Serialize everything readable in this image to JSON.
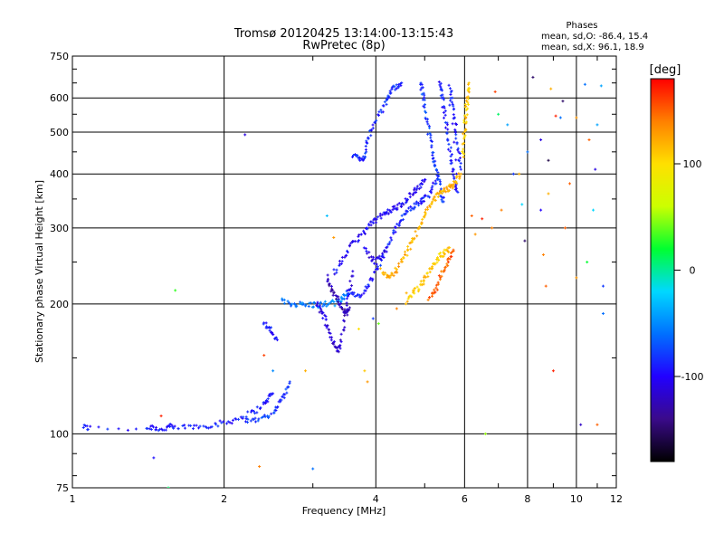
{
  "chart_data": {
    "type": "scatter",
    "title": "Tromsø 20120425 13:14:00-13:15:43",
    "subtitle": "RwPretec (8p)",
    "xlabel": "Frequency [MHz]",
    "ylabel": "Stationary phase Virtual Height [km]",
    "x_scale": "log",
    "y_scale": "log",
    "xlim": [
      1,
      12
    ],
    "ylim": [
      75,
      750
    ],
    "x_ticks": [
      1,
      2,
      4,
      6,
      8,
      10,
      12
    ],
    "y_ticks": [
      75,
      100,
      200,
      300,
      400,
      500,
      600,
      750
    ],
    "grid": true,
    "info_box": {
      "heading": "Phases",
      "line1": "mean, sd,O: -86.4, 15.4",
      "line2": "mean, sd,X:  96.1, 18.9"
    },
    "colorbar": {
      "label": "[deg]",
      "range": [
        -180,
        180
      ],
      "ticks": [
        100,
        0,
        -100
      ],
      "colors": [
        "#000000",
        "#3a0a8a",
        "#2200ff",
        "#0070ff",
        "#00d8ff",
        "#00ff30",
        "#ccff00",
        "#ffe000",
        "#ff8000",
        "#ff0000"
      ]
    },
    "traces": [
      {
        "phase": -92,
        "points": [
          [
            1.05,
            104
          ],
          [
            1.08,
            103
          ],
          [
            1.4,
            103
          ],
          [
            1.45,
            104
          ],
          [
            1.5,
            102
          ],
          [
            1.55,
            104
          ],
          [
            1.6,
            103
          ],
          [
            1.7,
            104
          ],
          [
            1.8,
            104
          ],
          [
            1.9,
            105
          ],
          [
            2.0,
            106
          ],
          [
            2.1,
            108
          ],
          [
            2.2,
            110
          ],
          [
            2.3,
            113
          ],
          [
            2.4,
            117
          ],
          [
            2.45,
            121
          ],
          [
            2.5,
            124
          ]
        ]
      },
      {
        "phase": -80,
        "points": [
          [
            2.2,
            107
          ],
          [
            2.3,
            108
          ],
          [
            2.4,
            109
          ],
          [
            2.5,
            112
          ],
          [
            2.55,
            115
          ],
          [
            2.6,
            120
          ],
          [
            2.65,
            126
          ],
          [
            2.7,
            132
          ]
        ]
      },
      {
        "phase": -95,
        "points": [
          [
            2.4,
            180
          ],
          [
            2.45,
            176
          ],
          [
            2.5,
            170
          ],
          [
            2.55,
            165
          ]
        ]
      },
      {
        "phase": -55,
        "points": [
          [
            2.6,
            203
          ],
          [
            2.7,
            200
          ],
          [
            2.8,
            200
          ],
          [
            2.9,
            199
          ],
          [
            3.0,
            199
          ],
          [
            3.1,
            199
          ],
          [
            3.2,
            200
          ],
          [
            3.3,
            201
          ],
          [
            3.4,
            203
          ],
          [
            3.45,
            208
          ],
          [
            3.5,
            214
          ]
        ]
      },
      {
        "phase": -110,
        "points": [
          [
            3.05,
            200
          ],
          [
            3.1,
            195
          ],
          [
            3.15,
            188
          ],
          [
            3.2,
            180
          ],
          [
            3.25,
            170
          ],
          [
            3.3,
            162
          ],
          [
            3.35,
            155
          ],
          [
            3.4,
            160
          ],
          [
            3.45,
            175
          ],
          [
            3.5,
            195
          ],
          [
            3.55,
            215
          ],
          [
            3.6,
            238
          ]
        ]
      },
      {
        "phase": -125,
        "points": [
          [
            3.2,
            230
          ],
          [
            3.25,
            220
          ],
          [
            3.3,
            212
          ],
          [
            3.35,
            205
          ],
          [
            3.4,
            198
          ],
          [
            3.45,
            192
          ],
          [
            3.5,
            190
          ],
          [
            3.55,
            196
          ]
        ]
      },
      {
        "phase": -88,
        "points": [
          [
            3.5,
            215
          ],
          [
            3.6,
            210
          ],
          [
            3.7,
            208
          ],
          [
            3.8,
            215
          ],
          [
            3.9,
            225
          ],
          [
            4.0,
            238
          ],
          [
            4.1,
            252
          ],
          [
            4.2,
            268
          ],
          [
            4.3,
            285
          ],
          [
            4.4,
            300
          ],
          [
            4.5,
            315
          ],
          [
            4.6,
            328
          ],
          [
            4.7,
            335
          ],
          [
            4.8,
            340
          ],
          [
            4.9,
            345
          ],
          [
            5.0,
            350
          ],
          [
            5.1,
            360
          ],
          [
            5.2,
            375
          ],
          [
            5.3,
            390
          ]
        ]
      },
      {
        "phase": -100,
        "points": [
          [
            3.3,
            235
          ],
          [
            3.4,
            248
          ],
          [
            3.5,
            262
          ],
          [
            3.6,
            275
          ],
          [
            3.7,
            285
          ],
          [
            3.8,
            295
          ],
          [
            3.9,
            305
          ],
          [
            4.0,
            312
          ],
          [
            4.1,
            320
          ],
          [
            4.2,
            325
          ],
          [
            4.3,
            330
          ],
          [
            4.4,
            335
          ],
          [
            4.5,
            340
          ],
          [
            4.6,
            348
          ],
          [
            4.7,
            358
          ],
          [
            4.8,
            368
          ],
          [
            4.9,
            378
          ],
          [
            5.0,
            388
          ]
        ]
      },
      {
        "phase": -105,
        "points": [
          [
            3.8,
            270
          ],
          [
            3.9,
            255
          ],
          [
            4.0,
            250
          ],
          [
            4.1,
            258
          ],
          [
            4.2,
            270
          ]
        ]
      },
      {
        "phase": -86,
        "points": [
          [
            3.6,
            440
          ],
          [
            3.7,
            435
          ],
          [
            3.75,
            430
          ],
          [
            3.8,
            445
          ],
          [
            3.85,
            470
          ],
          [
            3.9,
            500
          ],
          [
            4.0,
            530
          ],
          [
            4.1,
            560
          ],
          [
            4.2,
            590
          ],
          [
            4.25,
            610
          ],
          [
            4.3,
            630
          ],
          [
            4.4,
            640
          ],
          [
            4.5,
            650
          ]
        ]
      },
      {
        "phase": -80,
        "points": [
          [
            4.9,
            650
          ],
          [
            4.95,
            620
          ],
          [
            5.0,
            580
          ],
          [
            5.05,
            540
          ],
          [
            5.1,
            500
          ],
          [
            5.15,
            470
          ],
          [
            5.2,
            440
          ],
          [
            5.25,
            420
          ],
          [
            5.3,
            400
          ],
          [
            5.35,
            380
          ],
          [
            5.4,
            360
          ],
          [
            5.45,
            345
          ]
        ]
      },
      {
        "phase": -92,
        "points": [
          [
            5.35,
            650
          ],
          [
            5.4,
            620
          ],
          [
            5.45,
            580
          ],
          [
            5.5,
            540
          ],
          [
            5.55,
            500
          ],
          [
            5.6,
            460
          ],
          [
            5.65,
            430
          ],
          [
            5.7,
            400
          ],
          [
            5.75,
            380
          ],
          [
            5.8,
            360
          ],
          [
            5.6,
            640
          ],
          [
            5.65,
            600
          ],
          [
            5.7,
            560
          ],
          [
            5.75,
            520
          ],
          [
            5.8,
            480
          ],
          [
            5.85,
            440
          ],
          [
            5.9,
            410
          ]
        ]
      },
      {
        "phase": 120,
        "points": [
          [
            4.1,
            240
          ],
          [
            4.2,
            232
          ],
          [
            4.3,
            233
          ],
          [
            4.4,
            240
          ],
          [
            4.5,
            252
          ],
          [
            4.6,
            262
          ],
          [
            4.7,
            275
          ],
          [
            4.8,
            290
          ],
          [
            4.9,
            305
          ],
          [
            5.0,
            320
          ],
          [
            5.1,
            335
          ],
          [
            5.2,
            348
          ],
          [
            5.3,
            358
          ],
          [
            5.4,
            362
          ],
          [
            5.5,
            368
          ],
          [
            5.6,
            372
          ],
          [
            5.7,
            378
          ],
          [
            5.8,
            388
          ],
          [
            5.9,
            400
          ]
        ]
      },
      {
        "phase": 110,
        "points": [
          [
            4.6,
            200
          ],
          [
            4.7,
            210
          ],
          [
            4.8,
            215
          ],
          [
            4.9,
            220
          ],
          [
            5.0,
            228
          ],
          [
            5.1,
            238
          ],
          [
            5.2,
            245
          ],
          [
            5.3,
            255
          ],
          [
            5.4,
            260
          ],
          [
            5.5,
            265
          ],
          [
            5.6,
            270
          ]
        ]
      },
      {
        "phase": 150,
        "points": [
          [
            5.1,
            205
          ],
          [
            5.2,
            210
          ],
          [
            5.3,
            220
          ],
          [
            5.4,
            235
          ],
          [
            5.5,
            245
          ],
          [
            5.6,
            255
          ],
          [
            5.7,
            265
          ]
        ]
      },
      {
        "phase": 110,
        "points": [
          [
            5.95,
            440
          ],
          [
            5.97,
            470
          ],
          [
            6.0,
            500
          ],
          [
            6.02,
            530
          ],
          [
            6.05,
            560
          ],
          [
            6.07,
            590
          ],
          [
            6.1,
            620
          ],
          [
            6.12,
            650
          ]
        ]
      }
    ],
    "scatter_points": [
      {
        "x": 1.45,
        "y": 88,
        "phase": -95
      },
      {
        "x": 1.5,
        "y": 110,
        "phase": 170
      },
      {
        "x": 1.55,
        "y": 75,
        "phase": 10
      },
      {
        "x": 1.6,
        "y": 215,
        "phase": 30
      },
      {
        "x": 2.2,
        "y": 493,
        "phase": -110
      },
      {
        "x": 2.35,
        "y": 84,
        "phase": 140
      },
      {
        "x": 2.4,
        "y": 152,
        "phase": 160
      },
      {
        "x": 2.5,
        "y": 140,
        "phase": -50
      },
      {
        "x": 2.9,
        "y": 140,
        "phase": 120
      },
      {
        "x": 3.0,
        "y": 83,
        "phase": -60
      },
      {
        "x": 3.3,
        "y": 285,
        "phase": 130
      },
      {
        "x": 3.2,
        "y": 320,
        "phase": -30
      },
      {
        "x": 3.7,
        "y": 175,
        "phase": 100
      },
      {
        "x": 3.8,
        "y": 140,
        "phase": 110
      },
      {
        "x": 3.85,
        "y": 132,
        "phase": 130
      },
      {
        "x": 3.95,
        "y": 185,
        "phase": -80
      },
      {
        "x": 4.05,
        "y": 180,
        "phase": 40
      },
      {
        "x": 4.4,
        "y": 195,
        "phase": 140
      },
      {
        "x": 4.6,
        "y": 212,
        "phase": 120
      },
      {
        "x": 6.2,
        "y": 320,
        "phase": 150
      },
      {
        "x": 6.3,
        "y": 290,
        "phase": 130
      },
      {
        "x": 6.5,
        "y": 315,
        "phase": 170
      },
      {
        "x": 6.6,
        "y": 100,
        "phase": 50
      },
      {
        "x": 6.8,
        "y": 300,
        "phase": 140
      },
      {
        "x": 6.9,
        "y": 620,
        "phase": 160
      },
      {
        "x": 7.0,
        "y": 550,
        "phase": 10
      },
      {
        "x": 7.1,
        "y": 330,
        "phase": 140
      },
      {
        "x": 7.3,
        "y": 520,
        "phase": -40
      },
      {
        "x": 7.5,
        "y": 400,
        "phase": -80
      },
      {
        "x": 7.7,
        "y": 400,
        "phase": 120
      },
      {
        "x": 7.8,
        "y": 340,
        "phase": -20
      },
      {
        "x": 7.9,
        "y": 280,
        "phase": -150
      },
      {
        "x": 8.0,
        "y": 450,
        "phase": -60
      },
      {
        "x": 8.2,
        "y": 670,
        "phase": -150
      },
      {
        "x": 8.5,
        "y": 330,
        "phase": -100
      },
      {
        "x": 8.5,
        "y": 480,
        "phase": -110
      },
      {
        "x": 8.6,
        "y": 260,
        "phase": 140
      },
      {
        "x": 8.7,
        "y": 220,
        "phase": 150
      },
      {
        "x": 8.8,
        "y": 430,
        "phase": -160
      },
      {
        "x": 8.8,
        "y": 360,
        "phase": 120
      },
      {
        "x": 8.9,
        "y": 630,
        "phase": 120
      },
      {
        "x": 9.0,
        "y": 140,
        "phase": 170
      },
      {
        "x": 9.1,
        "y": 545,
        "phase": 170
      },
      {
        "x": 9.3,
        "y": 540,
        "phase": -60
      },
      {
        "x": 9.4,
        "y": 590,
        "phase": -150
      },
      {
        "x": 9.5,
        "y": 300,
        "phase": 150
      },
      {
        "x": 9.7,
        "y": 380,
        "phase": 150
      },
      {
        "x": 10.0,
        "y": 230,
        "phase": 130
      },
      {
        "x": 10.0,
        "y": 540,
        "phase": 130
      },
      {
        "x": 10.2,
        "y": 105,
        "phase": -120
      },
      {
        "x": 10.4,
        "y": 645,
        "phase": -60
      },
      {
        "x": 10.5,
        "y": 250,
        "phase": 20
      },
      {
        "x": 10.6,
        "y": 480,
        "phase": 150
      },
      {
        "x": 10.8,
        "y": 330,
        "phase": -20
      },
      {
        "x": 10.9,
        "y": 410,
        "phase": -110
      },
      {
        "x": 11.0,
        "y": 520,
        "phase": -40
      },
      {
        "x": 11.0,
        "y": 105,
        "phase": 150
      },
      {
        "x": 11.2,
        "y": 640,
        "phase": -40
      },
      {
        "x": 11.3,
        "y": 190,
        "phase": -60
      },
      {
        "x": 11.3,
        "y": 220,
        "phase": -80
      }
    ]
  }
}
